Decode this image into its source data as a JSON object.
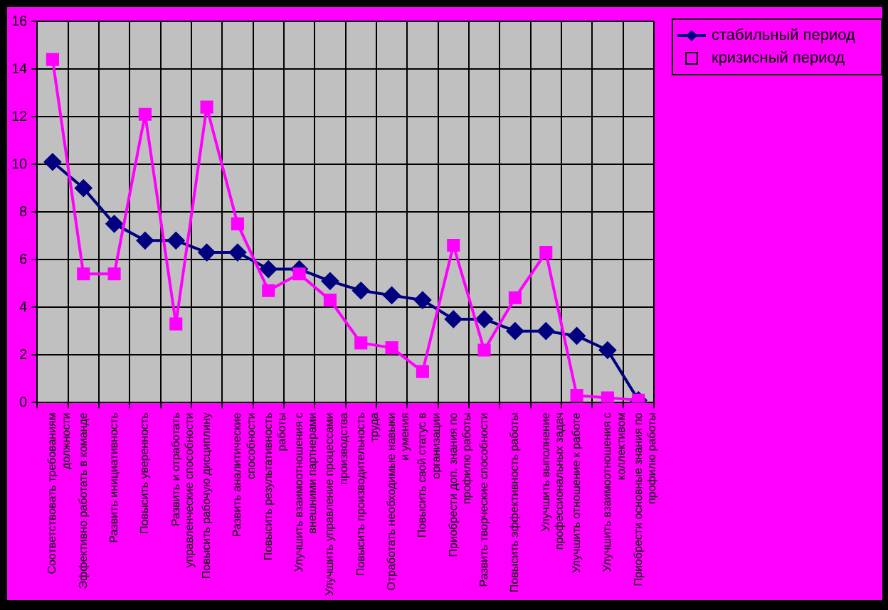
{
  "chart_data": {
    "type": "line",
    "categories": [
      "Соответствовать требованиям должности",
      "Эффективно работать в команде",
      "Развить инициативность",
      "Повысить уверенность",
      "Развить и отработать управленческие способности",
      "Повысить рабочую дисциплину",
      "Развить аналитические способности",
      "Повысить результативность работы",
      "Улучшить взаимоотношения с внешними партнерами",
      "Улучшить управление процессами производства",
      "Повысить производительность труда",
      "Отработать необходимые навыки и умения",
      "Повысить свой статус в организации",
      "Приобрести доп. знания по профилю работы",
      "Развить творческие способности",
      "Повысить эффективность работы",
      "Улучшить выполнение профессиональных задач",
      "Улучшить отношение к работе",
      "Улучшить взаимоотношения с коллективом",
      "Приобрести основные знания по профилю работы"
    ],
    "series": [
      {
        "name": "стабильный период",
        "color": "#000080",
        "marker": "diamond",
        "values": [
          10.1,
          9.0,
          7.5,
          6.8,
          6.8,
          6.3,
          6.3,
          5.6,
          5.6,
          5.1,
          4.7,
          4.5,
          4.3,
          3.5,
          3.5,
          3.0,
          3.0,
          2.8,
          2.2,
          0.1
        ]
      },
      {
        "name": "кризисный период",
        "color": "#ff00ff",
        "marker": "square",
        "values": [
          14.4,
          5.4,
          5.4,
          12.1,
          3.3,
          12.4,
          7.5,
          4.7,
          5.4,
          4.3,
          2.5,
          2.3,
          1.3,
          6.6,
          2.2,
          4.4,
          6.3,
          0.3,
          0.2,
          0.1
        ]
      }
    ],
    "ylim": [
      0,
      16
    ],
    "yticks": [
      0,
      2,
      4,
      6,
      8,
      10,
      12,
      14,
      16
    ],
    "grid": true,
    "legend": "top right"
  }
}
